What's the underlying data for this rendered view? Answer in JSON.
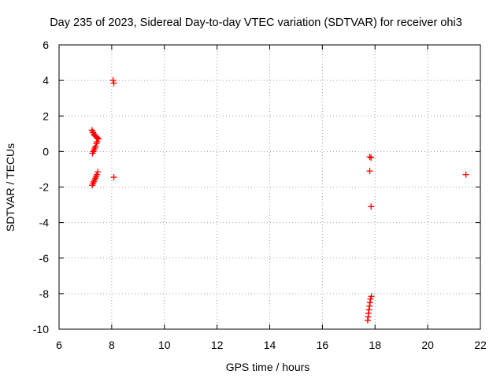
{
  "chart_data": {
    "type": "scatter",
    "title": "Day 235 of 2023, Sidereal Day-to-day VTEC variation (SDTVAR) for receiver ohi3",
    "xlabel": "GPS time / hours",
    "ylabel": "SDTVAR / TECUs",
    "xlim": [
      6,
      22
    ],
    "ylim": [
      -10,
      6
    ],
    "xticks": [
      6,
      8,
      10,
      12,
      14,
      16,
      18,
      20,
      22
    ],
    "yticks": [
      -10,
      -8,
      -6,
      -4,
      -2,
      0,
      2,
      4,
      6
    ],
    "grid": true,
    "marker": "+",
    "series_color": "#ff0000",
    "points": [
      [
        7.25,
        1.2
      ],
      [
        7.28,
        1.1
      ],
      [
        7.3,
        1.05
      ],
      [
        7.33,
        0.95
      ],
      [
        7.36,
        0.9
      ],
      [
        7.4,
        0.85
      ],
      [
        7.43,
        0.8
      ],
      [
        7.46,
        0.75
      ],
      [
        7.5,
        0.7
      ],
      [
        7.27,
        -0.1
      ],
      [
        7.3,
        0.0
      ],
      [
        7.33,
        0.1
      ],
      [
        7.36,
        0.2
      ],
      [
        7.39,
        0.3
      ],
      [
        7.42,
        0.45
      ],
      [
        7.44,
        0.55
      ],
      [
        7.26,
        -1.9
      ],
      [
        7.29,
        -1.8
      ],
      [
        7.32,
        -1.7
      ],
      [
        7.35,
        -1.6
      ],
      [
        7.38,
        -1.5
      ],
      [
        7.41,
        -1.4
      ],
      [
        7.44,
        -1.3
      ],
      [
        7.47,
        -1.15
      ],
      [
        8.05,
        4.0
      ],
      [
        8.08,
        3.85
      ],
      [
        8.08,
        -1.45
      ],
      [
        17.8,
        -0.3
      ],
      [
        17.85,
        -0.35
      ],
      [
        17.8,
        -1.1
      ],
      [
        17.85,
        -3.1
      ],
      [
        17.72,
        -9.5
      ],
      [
        17.74,
        -9.3
      ],
      [
        17.75,
        -9.1
      ],
      [
        17.77,
        -8.9
      ],
      [
        17.79,
        -8.7
      ],
      [
        17.81,
        -8.5
      ],
      [
        17.83,
        -8.3
      ],
      [
        17.86,
        -8.15
      ],
      [
        21.45,
        -1.3
      ]
    ]
  }
}
